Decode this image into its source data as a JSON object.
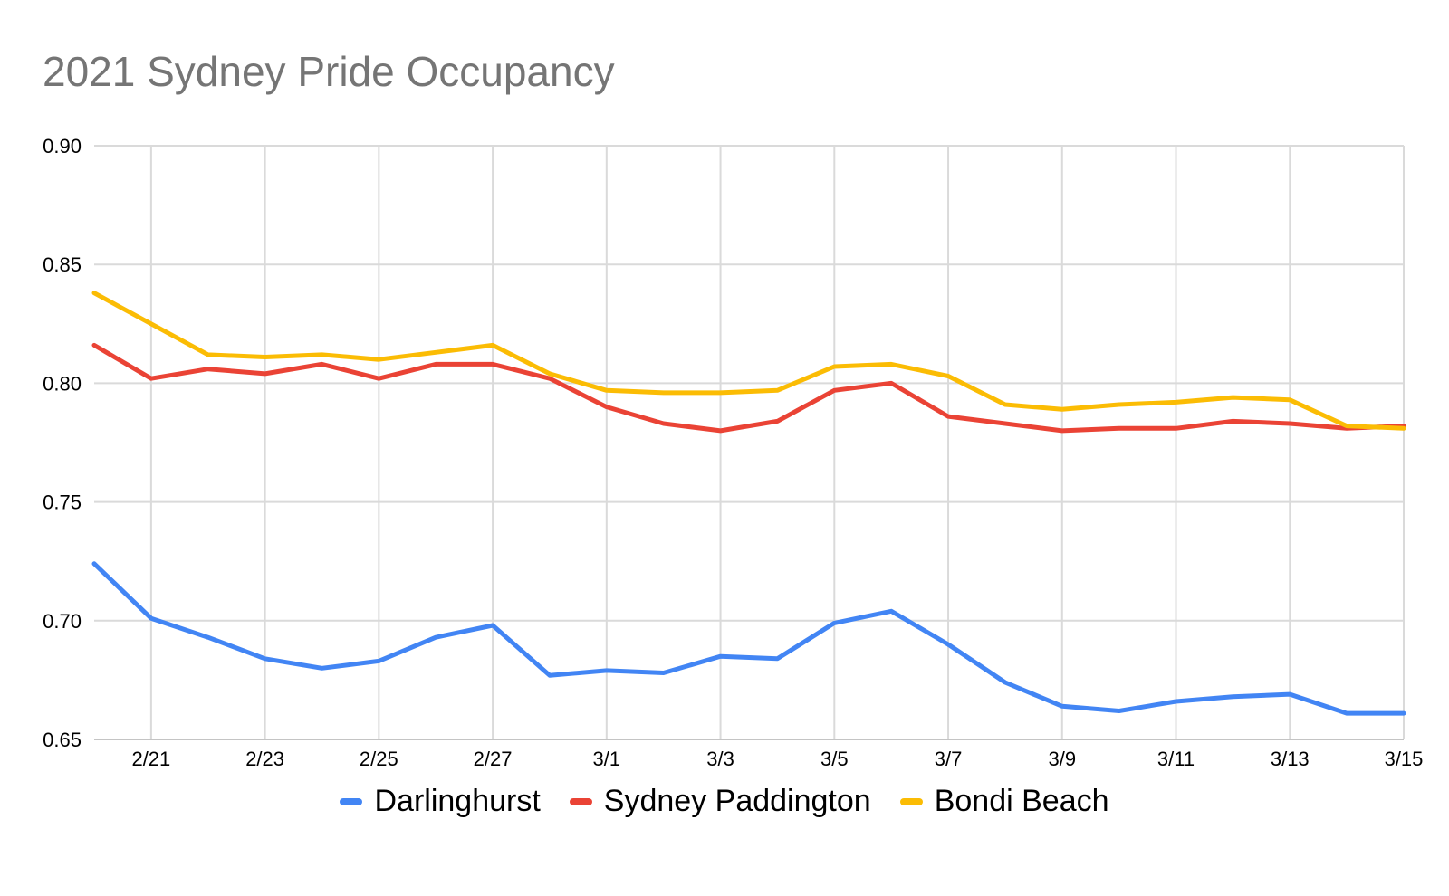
{
  "chart_data": {
    "type": "line",
    "title": "2021 Sydney Pride Occupancy",
    "title_color": "#757575",
    "grid": true,
    "legend_position": "bottom",
    "ylim": [
      0.65,
      0.9
    ],
    "y_ticks": [
      0.9,
      0.85,
      0.8,
      0.75,
      0.7,
      0.65
    ],
    "y_tick_labels": [
      "0.90",
      "0.85",
      "0.80",
      "0.75",
      "0.70",
      "0.65"
    ],
    "x": [
      "2/20",
      "2/21",
      "2/22",
      "2/23",
      "2/24",
      "2/25",
      "2/26",
      "2/27",
      "2/28",
      "3/1",
      "3/2",
      "3/3",
      "3/4",
      "3/5",
      "3/6",
      "3/7",
      "3/8",
      "3/9",
      "3/10",
      "3/11",
      "3/12",
      "3/13",
      "3/14",
      "3/15"
    ],
    "x_tick_labels": [
      "2/21",
      "2/23",
      "2/25",
      "2/27",
      "3/1",
      "3/3",
      "3/5",
      "3/7",
      "3/9",
      "3/11",
      "3/13",
      "3/15"
    ],
    "series": [
      {
        "name": "Darlinghurst",
        "color": "#4285F4",
        "values": [
          0.724,
          0.701,
          0.693,
          0.684,
          0.68,
          0.683,
          0.693,
          0.698,
          0.677,
          0.679,
          0.678,
          0.685,
          0.684,
          0.699,
          0.704,
          0.69,
          0.674,
          0.664,
          0.662,
          0.666,
          0.668,
          0.669,
          0.661,
          0.661
        ]
      },
      {
        "name": "Sydney Paddington",
        "color": "#EA4335",
        "values": [
          0.816,
          0.802,
          0.806,
          0.804,
          0.808,
          0.802,
          0.808,
          0.808,
          0.802,
          0.79,
          0.783,
          0.78,
          0.784,
          0.797,
          0.8,
          0.786,
          0.783,
          0.78,
          0.781,
          0.781,
          0.784,
          0.783,
          0.781,
          0.782
        ]
      },
      {
        "name": "Bondi Beach",
        "color": "#FBBC04",
        "values": [
          0.838,
          0.825,
          0.812,
          0.811,
          0.812,
          0.81,
          0.813,
          0.816,
          0.804,
          0.797,
          0.796,
          0.796,
          0.797,
          0.807,
          0.808,
          0.803,
          0.791,
          0.789,
          0.791,
          0.792,
          0.794,
          0.793,
          0.782,
          0.781
        ]
      }
    ],
    "grid_color": "#dadada",
    "axis_line_color": "#c4c4c4"
  }
}
